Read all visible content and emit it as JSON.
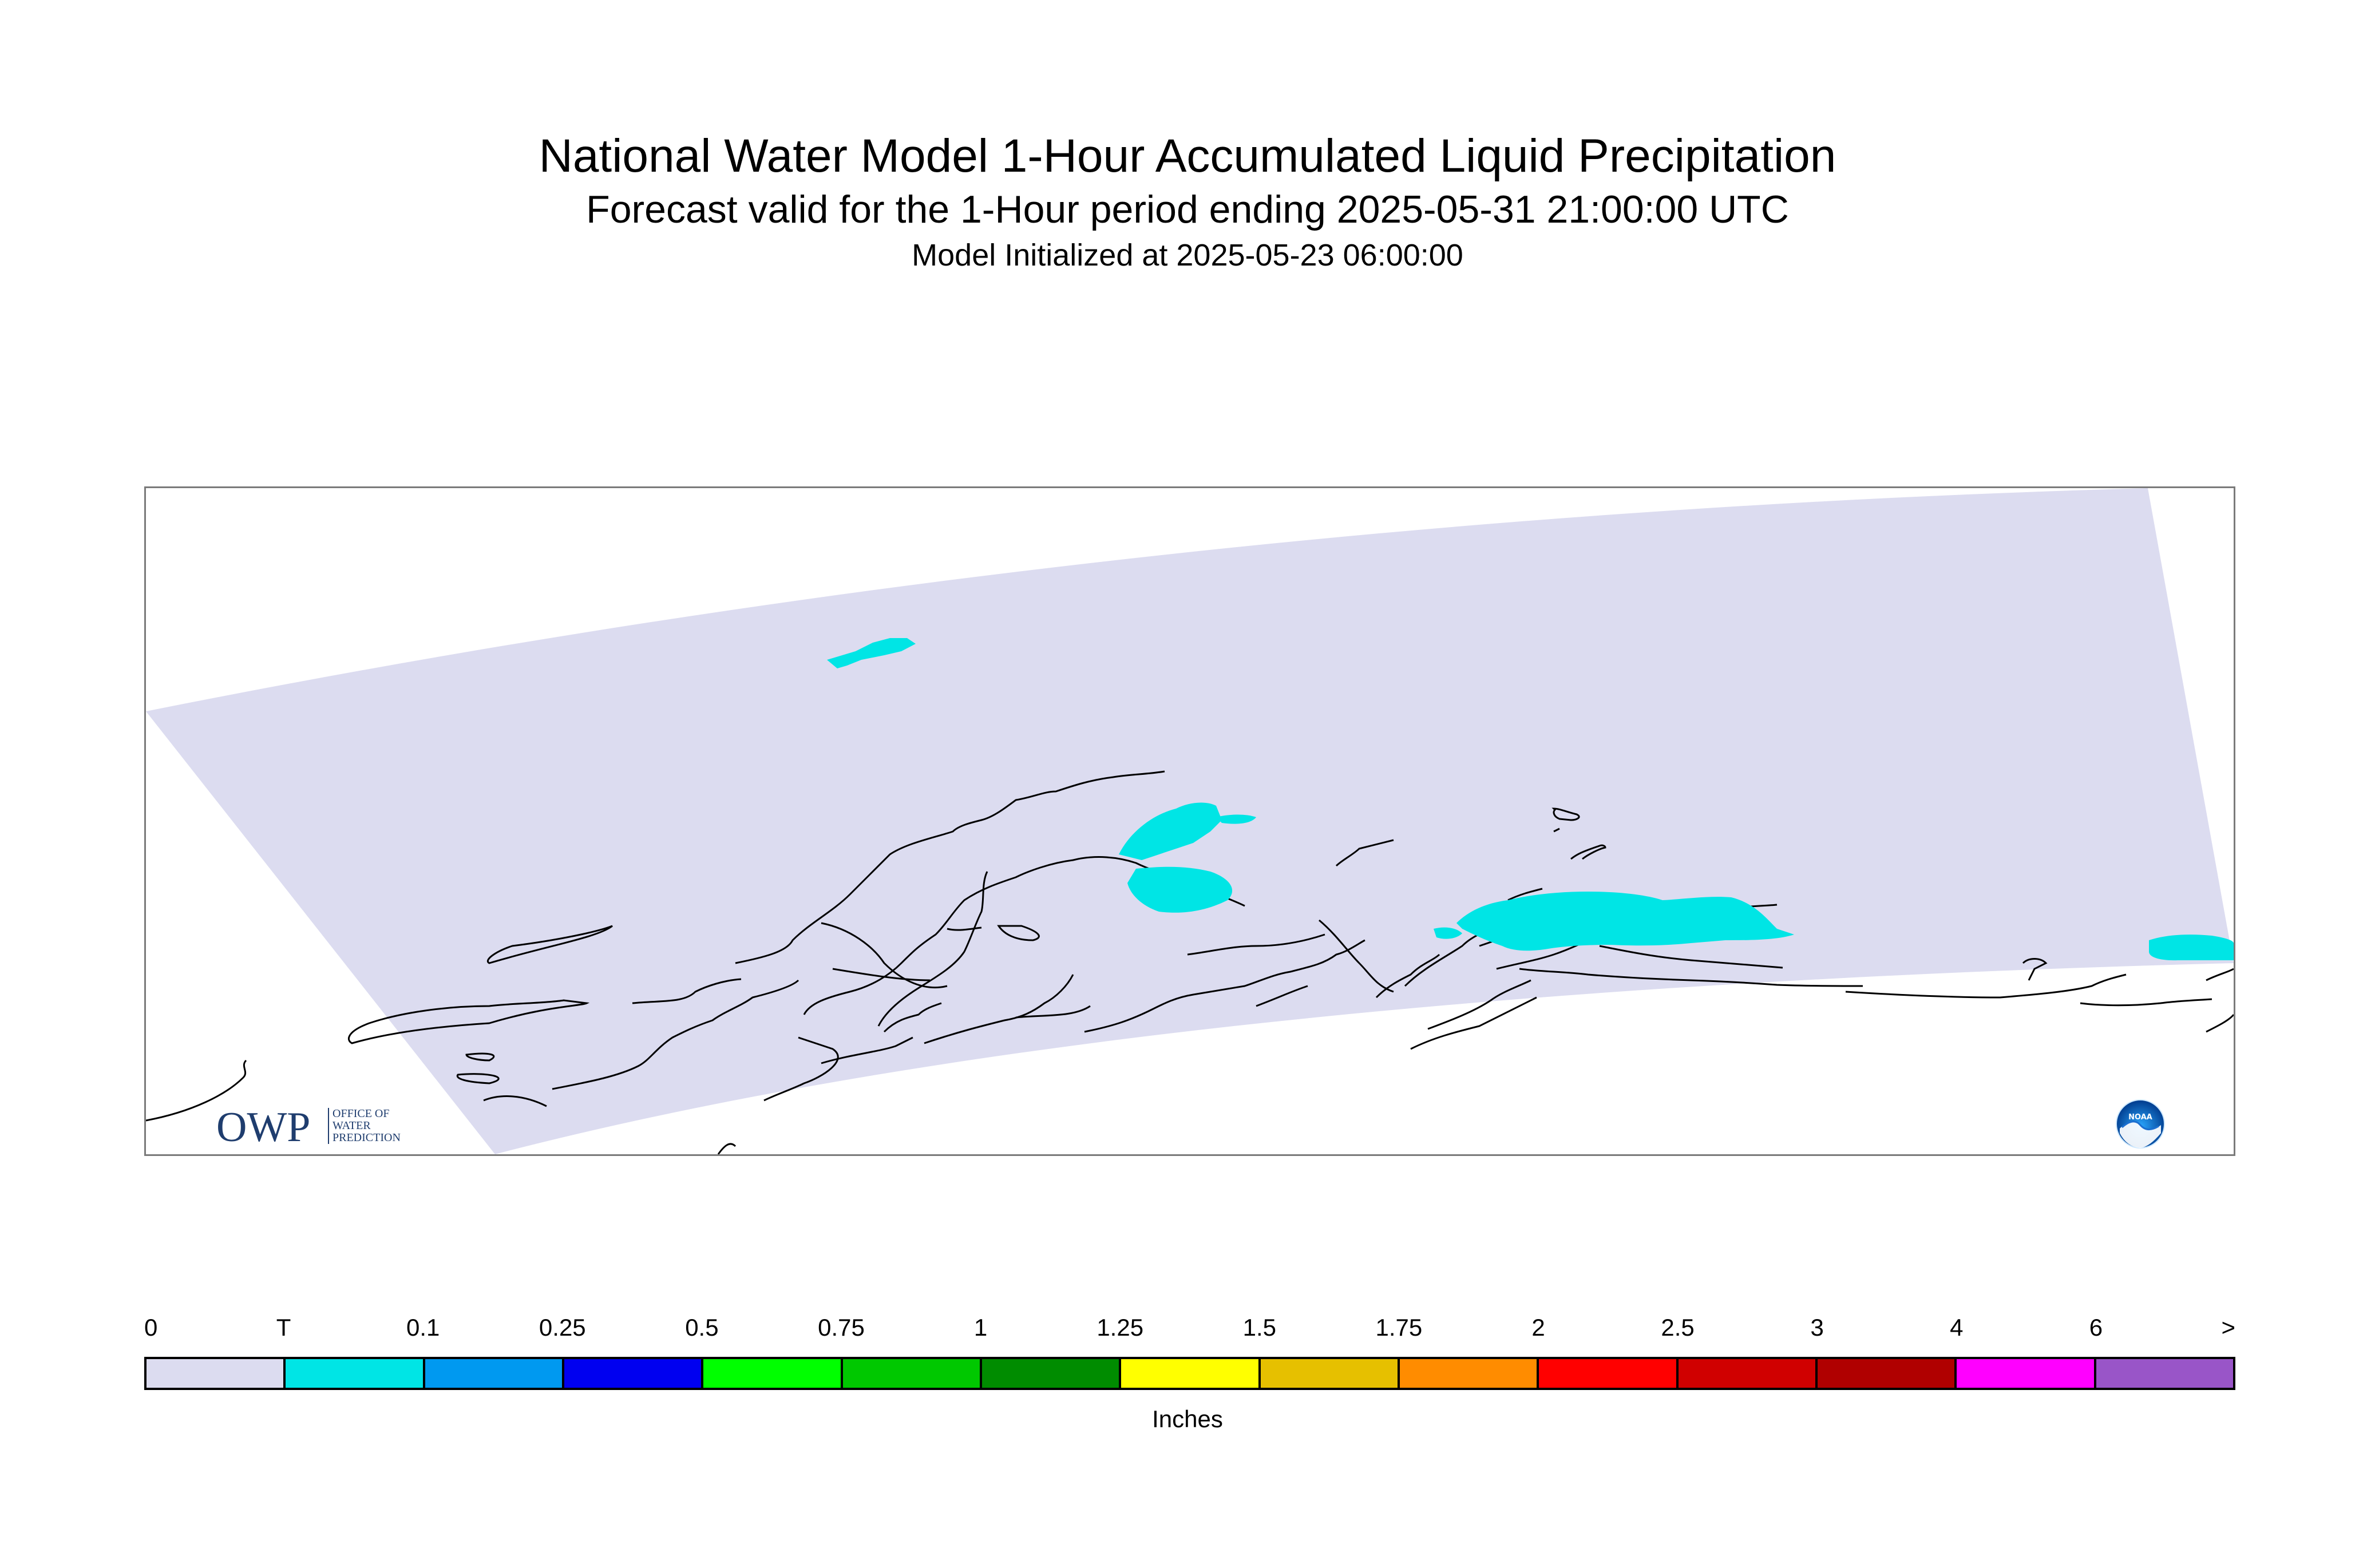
{
  "title": "National Water Model 1-Hour Accumulated Liquid Precipitation",
  "subtitle": "Forecast valid for the 1-Hour period ending 2025-05-31 21:00:00 UTC",
  "initialized": "Model Initialized at 2025-05-23 06:00:00",
  "map": {
    "domain_fill_color": "#dcdcf0",
    "trace_color": "#00e5e5",
    "coastline_color": "#000000",
    "logos": {
      "owp": {
        "wordmark": "OWP",
        "lines": [
          "OFFICE OF",
          "WATER",
          "PREDICTION"
        ]
      },
      "noaa": {
        "wordmark": "NOAA"
      }
    }
  },
  "legend": {
    "units": "Inches",
    "labels": [
      "0",
      "T",
      "0.1",
      "0.25",
      "0.5",
      "0.75",
      "1",
      "1.25",
      "1.5",
      "1.75",
      "2",
      "2.5",
      "3",
      "4",
      "6",
      ">"
    ],
    "colors": [
      "#dcdcf0",
      "#00e5e5",
      "#0099f0",
      "#0000f0",
      "#00ff00",
      "#00c800",
      "#008c00",
      "#ffff00",
      "#e6c000",
      "#ff8c00",
      "#ff0000",
      "#d00000",
      "#b00000",
      "#ff00ff",
      "#9955c8"
    ]
  }
}
